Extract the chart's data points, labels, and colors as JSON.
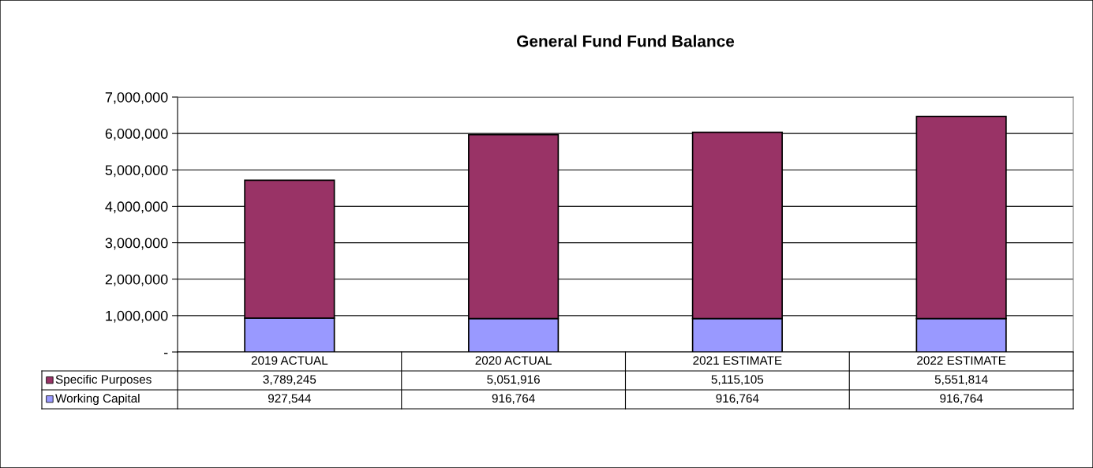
{
  "chart_data": {
    "type": "bar",
    "title": "General Fund Fund Balance",
    "stacked": true,
    "categories": [
      "2019 ACTUAL",
      "2020 ACTUAL",
      "2021 ESTIMATE",
      "2022 ESTIMATE"
    ],
    "series": [
      {
        "name": "Working Capital",
        "color": "#9999ff",
        "values": [
          927544,
          916764,
          916764,
          916764
        ],
        "value_labels": [
          "927,544",
          "916,764",
          "916,764",
          "916,764"
        ]
      },
      {
        "name": "Specific Purposes",
        "color": "#993366",
        "values": [
          3789245,
          5051916,
          5115105,
          5551814
        ],
        "value_labels": [
          "3,789,245",
          "5,051,916",
          "5,115,105",
          "5,551,814"
        ]
      }
    ],
    "ylim": [
      0,
      7000000
    ],
    "yticks": [
      {
        "value": 0,
        "label": "-"
      },
      {
        "value": 1000000,
        "label": "1,000,000"
      },
      {
        "value": 2000000,
        "label": "2,000,000"
      },
      {
        "value": 3000000,
        "label": "3,000,000"
      },
      {
        "value": 4000000,
        "label": "4,000,000"
      },
      {
        "value": 5000000,
        "label": "5,000,000"
      },
      {
        "value": 6000000,
        "label": "6,000,000"
      },
      {
        "value": 7000000,
        "label": "7,000,000"
      }
    ],
    "grid": "y",
    "legend": "bottom"
  }
}
